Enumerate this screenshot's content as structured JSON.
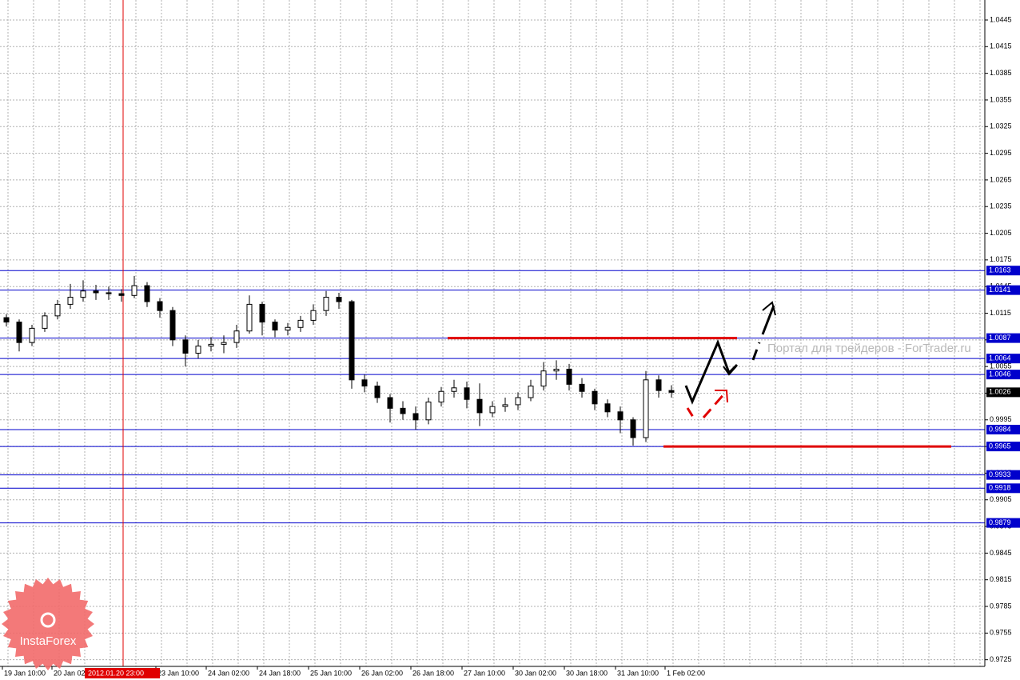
{
  "chart_data": {
    "type": "candlestick",
    "ylim": [
      0.97175,
      1.04675
    ],
    "yticks": [
      1.0445,
      1.0415,
      1.0385,
      1.0355,
      1.0325,
      1.0295,
      1.0265,
      1.0235,
      1.0205,
      1.0175,
      1.0145,
      1.0115,
      1.0085,
      1.0055,
      1.0025,
      0.9995,
      0.9965,
      0.9935,
      0.9905,
      0.9875,
      0.9845,
      0.9815,
      0.9785,
      0.9755,
      0.9725
    ],
    "x_labels": [
      "19 Jan 10:00",
      "20 Jan 02:00",
      "23 Jan 10:00",
      "24 Jan 02:00",
      "24 Jan 18:00",
      "25 Jan 10:00",
      "26 Jan 02:00",
      "26 Jan 18:00",
      "27 Jan 10:00",
      "30 Jan 02:00",
      "30 Jan 18:00",
      "31 Jan 10:00",
      "1 Feb 02:00"
    ],
    "crosshair_label": "2012.01.20 23:00",
    "ohlc": [
      [
        1.011,
        1.0114,
        1.01,
        1.0105
      ],
      [
        1.0105,
        1.0108,
        1.0072,
        1.0082
      ],
      [
        1.0082,
        1.0102,
        1.0078,
        1.0098
      ],
      [
        1.0098,
        1.0116,
        1.0094,
        1.0112
      ],
      [
        1.0112,
        1.013,
        1.0108,
        1.0125
      ],
      [
        1.0125,
        1.0148,
        1.012,
        1.0133
      ],
      [
        1.0133,
        1.0152,
        1.0128,
        1.014
      ],
      [
        1.014,
        1.0147,
        1.013,
        1.0138
      ],
      [
        1.0138,
        1.0145,
        1.013,
        1.0137
      ],
      [
        1.0137,
        1.0142,
        1.0128,
        1.0135
      ],
      [
        1.0135,
        1.0157,
        1.0132,
        1.0146
      ],
      [
        1.0146,
        1.015,
        1.0122,
        1.0128
      ],
      [
        1.0128,
        1.0132,
        1.011,
        1.0118
      ],
      [
        1.0118,
        1.0122,
        1.0078,
        1.0085
      ],
      [
        1.0085,
        1.009,
        1.0055,
        1.007
      ],
      [
        1.007,
        1.0085,
        1.0064,
        1.0078
      ],
      [
        1.0078,
        1.0088,
        1.0072,
        1.008
      ],
      [
        1.008,
        1.009,
        1.007,
        1.0082
      ],
      [
        1.0082,
        1.0102,
        1.0076,
        1.0095
      ],
      [
        1.0095,
        1.0135,
        1.0092,
        1.0125
      ],
      [
        1.0125,
        1.0128,
        1.009,
        1.0105
      ],
      [
        1.0105,
        1.0108,
        1.0088,
        1.0096
      ],
      [
        1.0096,
        1.0104,
        1.009,
        1.0099
      ],
      [
        1.0099,
        1.0112,
        1.0094,
        1.0107
      ],
      [
        1.0107,
        1.0125,
        1.0102,
        1.0118
      ],
      [
        1.0118,
        1.014,
        1.0112,
        1.0133
      ],
      [
        1.0133,
        1.0138,
        1.012,
        1.0128
      ],
      [
        1.0128,
        1.013,
        1.003,
        1.004
      ],
      [
        1.004,
        1.0046,
        1.0026,
        1.0033
      ],
      [
        1.0033,
        1.0038,
        1.0014,
        1.002
      ],
      [
        1.002,
        1.0024,
        0.9992,
        1.0008
      ],
      [
        1.0008,
        1.0016,
        0.9995,
        1.0002
      ],
      [
        1.0002,
        1.001,
        0.9984,
        0.9995
      ],
      [
        0.9995,
        1.002,
        0.999,
        1.0015
      ],
      [
        1.0015,
        1.0032,
        1.001,
        1.0027
      ],
      [
        1.0027,
        1.004,
        1.002,
        1.0031
      ],
      [
        1.0031,
        1.0038,
        1.0008,
        1.0018
      ],
      [
        1.0018,
        1.0036,
        0.9988,
        1.0003
      ],
      [
        1.0003,
        1.0016,
        0.9998,
        1.001
      ],
      [
        1.001,
        1.002,
        1.0004,
        1.0012
      ],
      [
        1.0012,
        1.0026,
        1.0006,
        1.002
      ],
      [
        1.002,
        1.004,
        1.0016,
        1.0033
      ],
      [
        1.0033,
        1.006,
        1.0028,
        1.005
      ],
      [
        1.005,
        1.0062,
        1.004,
        1.0052
      ],
      [
        1.0052,
        1.0058,
        1.0028,
        1.0035
      ],
      [
        1.0035,
        1.0042,
        1.002,
        1.0027
      ],
      [
        1.0027,
        1.003,
        1.0006,
        1.0013
      ],
      [
        1.0013,
        1.0018,
        0.9998,
        1.0004
      ],
      [
        1.0004,
        1.001,
        0.998,
        0.9995
      ],
      [
        0.9995,
        0.9998,
        0.9966,
        0.9975
      ],
      [
        0.9975,
        1.005,
        0.997,
        1.004
      ],
      [
        1.004,
        1.0045,
        1.002,
        1.0028
      ],
      [
        1.0028,
        1.0034,
        1.002,
        1.0026
      ]
    ],
    "levels": [
      1.0163,
      1.0141,
      1.0087,
      1.0064,
      1.0046,
      0.9984,
      0.9965,
      0.9933,
      0.9918,
      0.9879
    ],
    "level_color": "#0000cc",
    "current_price": 1.0026,
    "red_lines": [
      1.0087,
      0.9965
    ],
    "grid": true,
    "watermark": "Портал для трейдеров - ForTrader.ru",
    "logo": "InstaForex"
  }
}
